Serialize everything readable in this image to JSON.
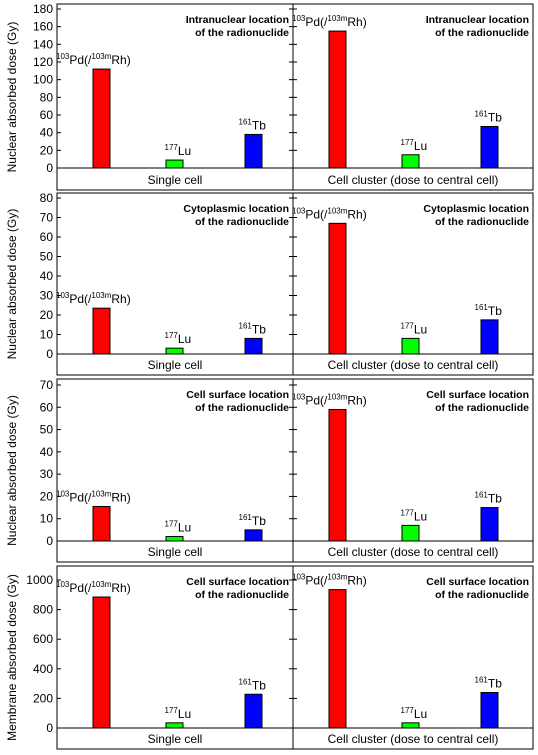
{
  "colors": {
    "pd": "#ff0000",
    "lu": "#00ff00",
    "tb": "#0000ff",
    "axis": "#000000",
    "background": "#ffffff"
  },
  "chart_data": [
    {
      "type": "bar",
      "ylabel": "Nuclear absorbed dose (Gy)",
      "ylim": [
        0,
        180
      ],
      "yticks": [
        "0",
        "20",
        "40",
        "60",
        "80",
        "100",
        "120",
        "140",
        "160",
        "180"
      ],
      "panels": [
        {
          "xlabel": "Single cell",
          "annotation_line1": "Intranuclear location",
          "annotation_line2": "of the radionuclide",
          "bars": [
            {
              "base": "Pd(/",
              "base_sup": "103",
              "mid_sup": "103m",
              "suffix": "Rh)",
              "value": 112,
              "color": "#ff0000"
            },
            {
              "base": "Lu",
              "base_sup": "177",
              "value": 9,
              "color": "#00ff00"
            },
            {
              "base": "Tb",
              "base_sup": "161",
              "value": 38,
              "color": "#0000ff"
            }
          ]
        },
        {
          "xlabel": "Cell cluster (dose to central cell)",
          "annotation_line1": "Intranuclear location",
          "annotation_line2": "of the radionuclide",
          "bars": [
            {
              "base": "Pd(/",
              "base_sup": "103",
              "mid_sup": "103m",
              "suffix": "Rh)",
              "value": 155,
              "color": "#ff0000"
            },
            {
              "base": "Lu",
              "base_sup": "177",
              "value": 15,
              "color": "#00ff00"
            },
            {
              "base": "Tb",
              "base_sup": "161",
              "value": 47,
              "color": "#0000ff"
            }
          ]
        }
      ]
    },
    {
      "type": "bar",
      "ylabel": "Nuclear absorbed dose (Gy)",
      "ylim": [
        0,
        80
      ],
      "yticks": [
        "0",
        "10",
        "20",
        "30",
        "40",
        "50",
        "60",
        "70",
        "80"
      ],
      "panels": [
        {
          "xlabel": "Single cell",
          "annotation_line1": "Cytoplasmic location",
          "annotation_line2": "of the radionuclide",
          "bars": [
            {
              "base": "Pd(/",
              "base_sup": "103",
              "mid_sup": "103m",
              "suffix": "Rh)",
              "value": 23.5,
              "color": "#ff0000"
            },
            {
              "base": "Lu",
              "base_sup": "177",
              "value": 3,
              "color": "#00ff00"
            },
            {
              "base": "Tb",
              "base_sup": "161",
              "value": 8,
              "color": "#0000ff"
            }
          ]
        },
        {
          "xlabel": "Cell cluster (dose to central cell)",
          "annotation_line1": "Cytoplasmic location",
          "annotation_line2": "of the radionuclide",
          "bars": [
            {
              "base": "Pd(/",
              "base_sup": "103",
              "mid_sup": "103m",
              "suffix": "Rh)",
              "value": 67,
              "color": "#ff0000"
            },
            {
              "base": "Lu",
              "base_sup": "177",
              "value": 8,
              "color": "#00ff00"
            },
            {
              "base": "Tb",
              "base_sup": "161",
              "value": 17.5,
              "color": "#0000ff"
            }
          ]
        }
      ]
    },
    {
      "type": "bar",
      "ylabel": "Nuclear absorbed dose (Gy)",
      "ylim": [
        0,
        70
      ],
      "yticks": [
        "0",
        "10",
        "20",
        "30",
        "40",
        "50",
        "60",
        "70"
      ],
      "panels": [
        {
          "xlabel": "Single cell",
          "annotation_line1": "Cell surface location",
          "annotation_line2": "of the radionuclide",
          "bars": [
            {
              "base": "Pd(/",
              "base_sup": "103",
              "mid_sup": "103m",
              "suffix": "Rh)",
              "value": 15.5,
              "color": "#ff0000"
            },
            {
              "base": "Lu",
              "base_sup": "177",
              "value": 2,
              "color": "#00ff00"
            },
            {
              "base": "Tb",
              "base_sup": "161",
              "value": 5,
              "color": "#0000ff"
            }
          ]
        },
        {
          "xlabel": "Cell cluster (dose to central cell)",
          "annotation_line1": "Cell surface location",
          "annotation_line2": "of the radionuclide",
          "bars": [
            {
              "base": "Pd(/",
              "base_sup": "103",
              "mid_sup": "103m",
              "suffix": "Rh)",
              "value": 59,
              "color": "#ff0000"
            },
            {
              "base": "Lu",
              "base_sup": "177",
              "value": 7,
              "color": "#00ff00"
            },
            {
              "base": "Tb",
              "base_sup": "161",
              "value": 15,
              "color": "#0000ff"
            }
          ]
        }
      ]
    },
    {
      "type": "bar",
      "ylabel": "Membrane absorbed dose (Gy)",
      "ylim": [
        0,
        1100
      ],
      "yticks": [
        "0",
        "200",
        "400",
        "600",
        "800",
        "1000"
      ],
      "panels": [
        {
          "xlabel": "Single cell",
          "annotation_line1": "Cell surface location",
          "annotation_line2": "of the radionuclide",
          "bars": [
            {
              "base": "Pd(/",
              "base_sup": "103",
              "mid_sup": "103m",
              "suffix": "Rh)",
              "value": 885,
              "color": "#ff0000"
            },
            {
              "base": "Lu",
              "base_sup": "177",
              "value": 35,
              "color": "#00ff00"
            },
            {
              "base": "Tb",
              "base_sup": "161",
              "value": 228,
              "color": "#0000ff"
            }
          ]
        },
        {
          "xlabel": "Cell cluster (dose to central cell)",
          "annotation_line1": "Cell surface location",
          "annotation_line2": "of the radionuclide",
          "bars": [
            {
              "base": "Pd(/",
              "base_sup": "103",
              "mid_sup": "103m",
              "suffix": "Rh)",
              "value": 935,
              "color": "#ff0000"
            },
            {
              "base": "Lu",
              "base_sup": "177",
              "value": 35,
              "color": "#00ff00"
            },
            {
              "base": "Tb",
              "base_sup": "161",
              "value": 240,
              "color": "#0000ff"
            }
          ]
        }
      ]
    }
  ]
}
